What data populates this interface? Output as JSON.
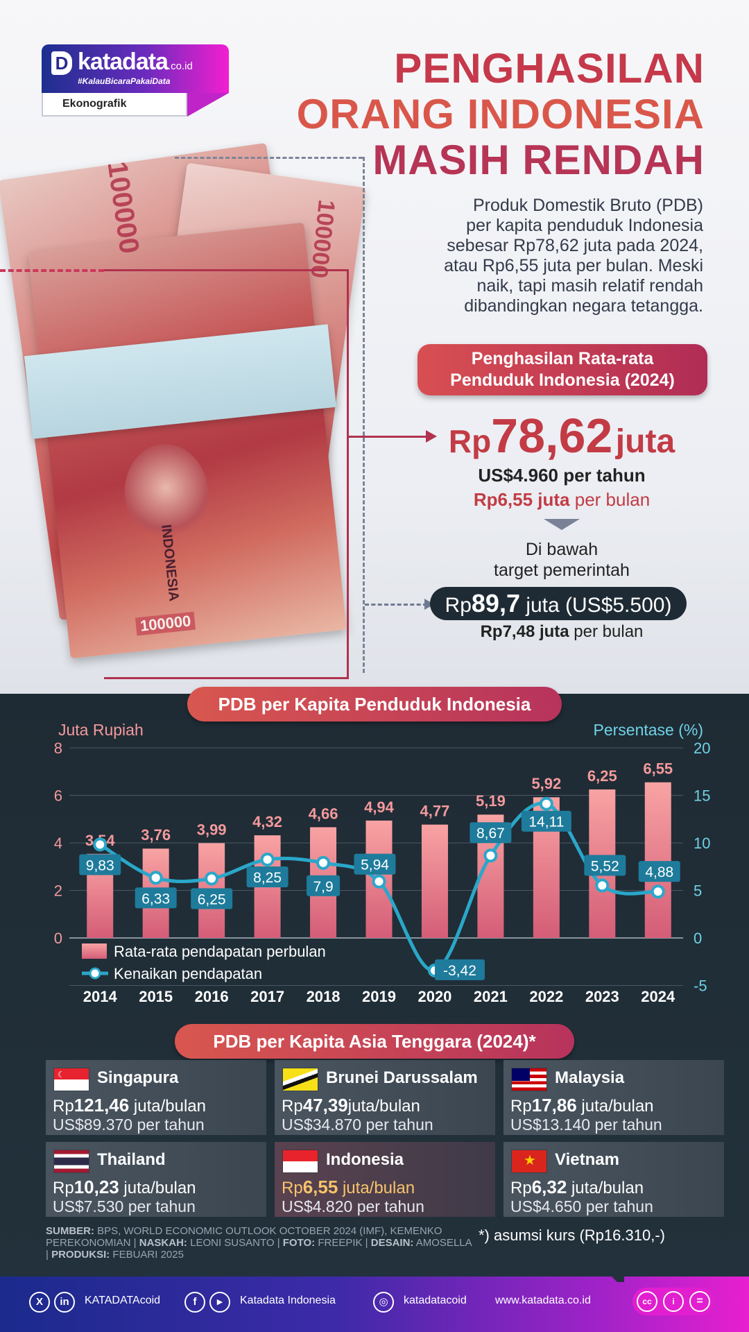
{
  "logo": {
    "brand": "katadata",
    "brand_suffix": ".co.id",
    "tagline": "#KalauBicaraPakaiData",
    "section": "Ekonografik",
    "d_mark": "D"
  },
  "title": {
    "line1": "PENGHASILAN",
    "line2": "ORANG INDONESIA",
    "line3": "MASIH RENDAH"
  },
  "intro": {
    "line1": "Produk Domestik Bruto (PDB)",
    "line2": "per kapita penduduk Indonesia",
    "line3": "sebesar Rp78,62 juta pada 2024,",
    "line4": "atau Rp6,55 juta per bulan. Meski",
    "line5": "naik, tapi masih relatif rendah",
    "line6": "dibandingkan negara tetangga."
  },
  "banknote": {
    "number": "100000",
    "number_small": "100000",
    "country": "INDONESIA"
  },
  "average": {
    "pill_line1": "Penghasilan Rata-rata",
    "pill_line2": "Penduduk Indonesia (2024)",
    "rp_prefix": "Rp",
    "value": "78,62",
    "unit": "juta",
    "usd_year": "US$4.960 per tahun",
    "rp_month_value": "Rp6,55 juta",
    "rp_month_suffix": " per bulan",
    "below_line1": "Di bawah",
    "below_line2": "target pemerintah",
    "target_prefix": "Rp",
    "target_value": "89,7",
    "target_suffix": " juta (US$5.500)",
    "target_month_value": "Rp7,48 juta",
    "target_month_suffix": " per bulan"
  },
  "chart_pill": "PDB per Kapita Penduduk Indonesia",
  "chart_data": {
    "type": "bar",
    "title": "PDB per Kapita Penduduk Indonesia",
    "categories": [
      "2014",
      "2015",
      "2016",
      "2017",
      "2018",
      "2019",
      "2020",
      "2021",
      "2022",
      "2023",
      "2024"
    ],
    "ylabel": "Juta Rupiah",
    "y2label": "Persentase (%)",
    "ylim": [
      0,
      8
    ],
    "y_ticks": [
      "0",
      "2",
      "4",
      "6",
      "8"
    ],
    "y2lim": [
      -5,
      20
    ],
    "y2_ticks": [
      "-5",
      "0",
      "5",
      "10",
      "15",
      "20"
    ],
    "grid": true,
    "legend": "bottom-left",
    "series": [
      {
        "name": "Rata-rata pendapatan perbulan",
        "type": "bar",
        "axis": "left",
        "color": "#f49a9d",
        "values": [
          3.54,
          3.76,
          3.99,
          4.32,
          4.66,
          4.94,
          4.77,
          5.19,
          5.92,
          6.25,
          6.55
        ],
        "labels": [
          "3,54",
          "3,76",
          "3,99",
          "4,32",
          "4,66",
          "4,94",
          "4,77",
          "5,19",
          "5,92",
          "6,25",
          "6,55"
        ]
      },
      {
        "name": "Kenaikan pendapatan",
        "type": "line",
        "axis": "right",
        "color": "#2aa7c9",
        "values": [
          9.83,
          6.33,
          6.25,
          8.25,
          7.9,
          5.94,
          -3.42,
          8.67,
          14.11,
          5.52,
          4.88
        ],
        "labels": [
          "9,83",
          "6,33",
          "6,25",
          "8,25",
          "7,9",
          "5,94",
          "-3,42",
          "8,67",
          "14,11",
          "5,52",
          "4,88"
        ]
      }
    ]
  },
  "asean": {
    "pill": "PDB per Kapita Asia Tenggara (2024)*",
    "countries": [
      {
        "name": "Singapura",
        "rp": "Rp",
        "value": "121,46",
        "unit": " juta/bulan",
        "usd": "US$89.370 per tahun"
      },
      {
        "name": "Brunei Darussalam",
        "rp": "Rp",
        "value": "47,39",
        "unit": "juta/bulan",
        "usd": "US$34.870 per tahun"
      },
      {
        "name": "Malaysia",
        "rp": "Rp",
        "value": "17,86",
        "unit": " juta/bulan",
        "usd": "US$13.140 per tahun"
      },
      {
        "name": "Thailand",
        "rp": "Rp",
        "value": "10,23",
        "unit": " juta/bulan",
        "usd": "US$7.530 per tahun"
      },
      {
        "name": "Indonesia",
        "rp": "Rp",
        "value": "6,55",
        "unit": " juta/bulan",
        "usd": "US$4.820 per tahun"
      },
      {
        "name": "Vietnam",
        "rp": "Rp",
        "value": "6,32",
        "unit": " juta/bulan",
        "usd": "US$4.650 per tahun"
      }
    ]
  },
  "source": {
    "k1": "SUMBER:",
    "v1": " BPS, WORLD ECONOMIC OUTLOOK OCTOBER 2024 (IMF), KEMENKO PEREKONOMIAN | ",
    "k2": "NASKAH:",
    "v2": " LEONI SUSANTO | ",
    "k3": "FOTO:",
    "v3": " FREEPIK | ",
    "k4": "DESAIN:",
    "v4": " AMOSELLA | ",
    "k5": "PRODUKSI:",
    "v5": " FEBUARI 2025"
  },
  "kurs_note": "*) asumsi kurs (Rp16.310,-)",
  "footer": {
    "x_icon": "X",
    "in_icon": "in",
    "handle1": "KATADATAcoid",
    "f_icon": "f",
    "yt_icon": "▶",
    "handle2": "Katadata Indonesia",
    "ig_icon": "◎",
    "handle3": "katadatacoid",
    "website": "www.katadata.co.id",
    "cc_icon": "cc",
    "by_icon": "i",
    "eq_icon": "="
  }
}
